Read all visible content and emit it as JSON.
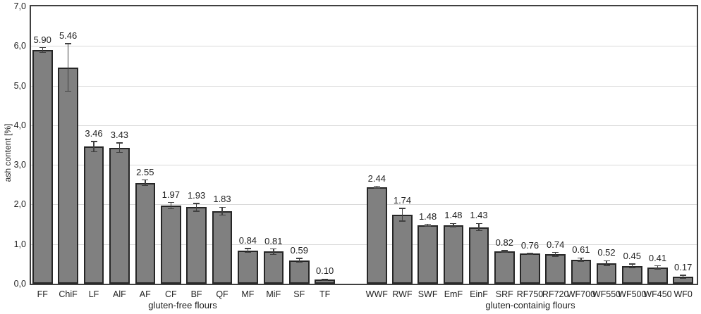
{
  "chart_data": {
    "type": "bar",
    "title": "",
    "xlabel": "",
    "ylabel": "ash content [%]",
    "ylim": [
      0,
      7
    ],
    "ytick_step": 1,
    "ytick_labels": [
      "0,0",
      "1,0",
      "2,0",
      "3,0",
      "4,0",
      "5,0",
      "6,0",
      "7,0"
    ],
    "grid": true,
    "legend": "none",
    "bar_color": "#808080",
    "bar_border_color": "#262626",
    "error_bar_color": "#404040",
    "value_label_decimals": 2,
    "groups": [
      {
        "label": "gluten-free flours",
        "categories": [
          "FF",
          "ChiF",
          "LF",
          "AlF",
          "AF",
          "CF",
          "BF",
          "QF",
          "MF",
          "MiF",
          "SF",
          "TF"
        ],
        "values": [
          5.9,
          5.46,
          3.46,
          3.43,
          2.55,
          1.97,
          1.93,
          1.83,
          0.84,
          0.81,
          0.59,
          0.1
        ],
        "errors": [
          0.06,
          0.6,
          0.13,
          0.12,
          0.07,
          0.08,
          0.1,
          0.1,
          0.05,
          0.07,
          0.05,
          0.02
        ],
        "value_labels": [
          "5.90",
          "5.46",
          "3.46",
          "3.43",
          "2.55",
          "1.97",
          "1.93",
          "1.83",
          "0.84",
          "0.81",
          "0.59",
          "0.10"
        ]
      },
      {
        "label": "gluten-containig flours",
        "categories": [
          "WWF",
          "RWF",
          "SWF",
          "EmF",
          "EinF",
          "SRF",
          "RF750",
          "RF720",
          "WF700",
          "WF550",
          "WF500",
          "WF450",
          "WF0"
        ],
        "values": [
          2.44,
          1.74,
          1.48,
          1.48,
          1.43,
          0.82,
          0.76,
          0.74,
          0.61,
          0.52,
          0.45,
          0.41,
          0.17
        ],
        "errors": [
          0.02,
          0.16,
          0.02,
          0.04,
          0.09,
          0.02,
          0.01,
          0.05,
          0.04,
          0.06,
          0.05,
          0.04,
          0.04
        ],
        "value_labels": [
          "2.44",
          "1.74",
          "1.48",
          "1.48",
          "1.43",
          "0.82",
          "0.76",
          "0.74",
          "0.61",
          "0.52",
          "0.45",
          "0.41",
          "0.17"
        ]
      }
    ]
  }
}
